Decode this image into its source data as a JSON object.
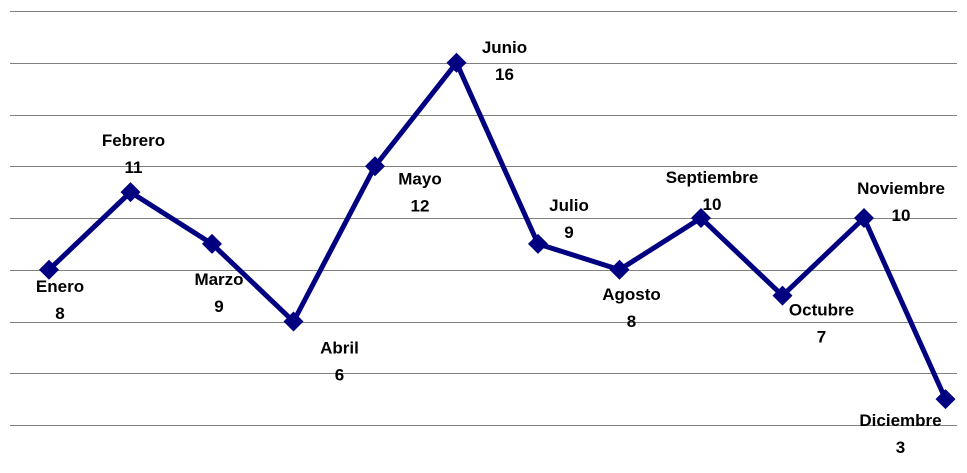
{
  "chart_data": {
    "type": "line",
    "categories": [
      "Enero",
      "Febrero",
      "Marzo",
      "Abril",
      "Mayo",
      "Junio",
      "Julio",
      "Agosto",
      "Septiembre",
      "Octubre",
      "Noviembre",
      "Diciembre"
    ],
    "series": [
      {
        "values": [
          8,
          11,
          9,
          6,
          12,
          16,
          9,
          8,
          10,
          7,
          10,
          3
        ]
      }
    ],
    "ylim": [
      2,
      18
    ],
    "y_gridlines": [
      2,
      4,
      6,
      8,
      10,
      12,
      14,
      16,
      18
    ],
    "grid": true,
    "legend": "none",
    "data_labels": "category name and value",
    "line_color": "#000080",
    "marker": "diamond",
    "gridline_color": "#808080"
  }
}
